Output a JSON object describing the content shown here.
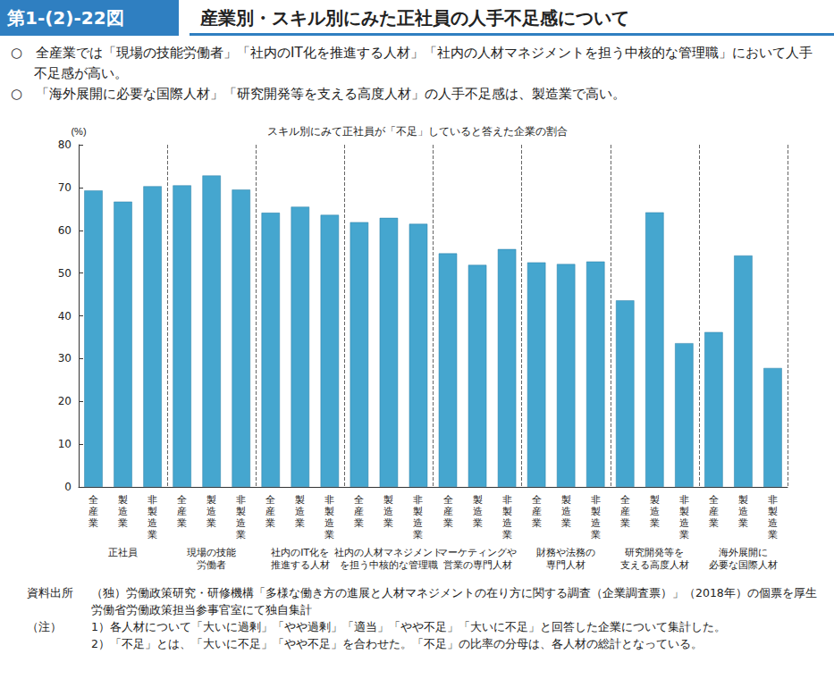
{
  "chart_data": {
    "type": "bar",
    "figure_label": "第1-(2)-22図",
    "title": "産業別・スキル別にみた正社員の人手不足感について",
    "summary": [
      "○　全産業では「現場の技能労働者」「社内のIT化を推進する人材」「社内の人材マネジメントを担う中核的な管理職」において人手不足感が高い。",
      "○　「海外展開に必要な国際人材」「研究開発等を支える高度人材」の人手不足感は、製造業で高い。"
    ],
    "subtitle": "スキル別にみて正社員が「不足」していると答えた企業の割合",
    "y_unit": "(%)",
    "subcategories": [
      "全産業",
      "製造業",
      "非製造業"
    ],
    "groups": [
      {
        "name": "正社員",
        "values": [
          69.3,
          66.7,
          70.3
        ]
      },
      {
        "name": "現場の技能\n労働者",
        "values": [
          70.5,
          72.8,
          69.5
        ]
      },
      {
        "name": "社内のIT化を\n推進する人材",
        "values": [
          64.1,
          65.5,
          63.6
        ]
      },
      {
        "name": "社内の人材マネジメント\nを担う中核的な管理職",
        "values": [
          61.9,
          62.9,
          61.5
        ]
      },
      {
        "name": "マーケティングや\n営業の専門人材",
        "values": [
          54.6,
          51.9,
          55.6
        ]
      },
      {
        "name": "財務や法務の\n専門人材",
        "values": [
          52.5,
          52.1,
          52.7
        ]
      },
      {
        "name": "研究開発等を\n支える高度人材",
        "values": [
          43.6,
          64.2,
          33.6
        ]
      },
      {
        "name": "海外展開に\n必要な国際人材",
        "values": [
          36.2,
          54.1,
          27.8
        ]
      }
    ],
    "color": "#45a6cf",
    "ylim": [
      0,
      80
    ],
    "yticks": [
      0,
      10,
      20,
      30,
      40,
      50,
      60,
      70,
      80
    ],
    "grid": false,
    "source_label": "資料出所",
    "source_text": "（独）労働政策研究・研修機構「多様な働き方の進展と人材マネジメントの在り方に関する調査（企業調査票）」（2018年）の個票を厚生労働省労働政策担当参事官室にて独自集計",
    "note_label": "（注）",
    "notes": [
      "1）各人材について「大いに過剰」「やや過剰」「適当」「やや不足」「大いに不足」と回答した企業について集計した。",
      "2）「不足」とは、「大いに不足」「やや不足」を合わせた。「不足」の比率の分母は、各人材の総計となっている。"
    ]
  }
}
